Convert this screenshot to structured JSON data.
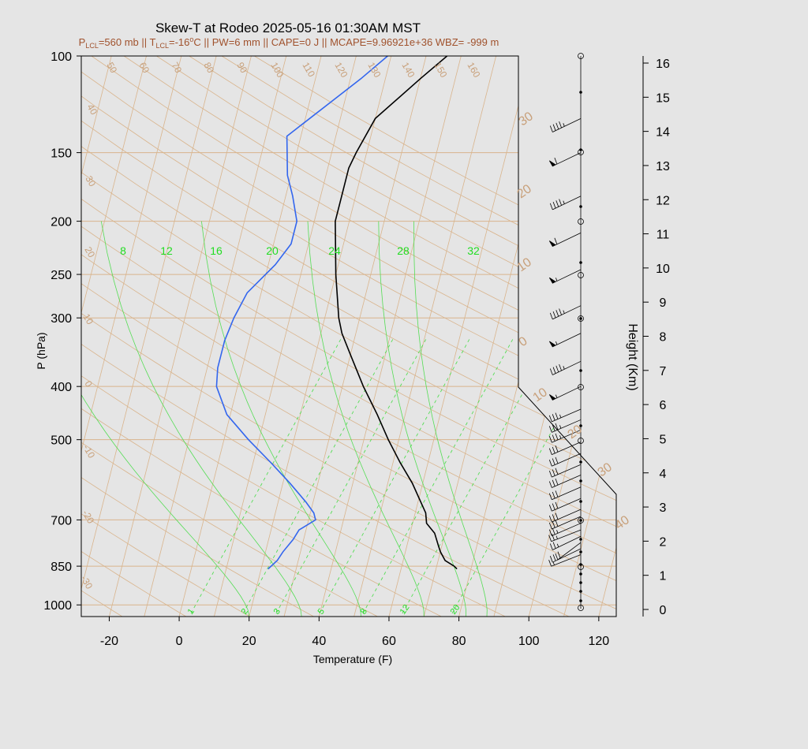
{
  "chart_data": {
    "type": "line",
    "title": "Skew-T at Rodeo 2025-05-16 01:30AM MST",
    "subtitle": {
      "p_label": "P",
      "p_sub": "LCL",
      "p_value": "=560 mb || T",
      "t_sub": "LCL",
      "t_value": "=-16",
      "deg": "o",
      "rest": "C || PW=6 mm || CAPE=0 J || MCAPE=9.96921e+36 WBZ= -999 m"
    },
    "xlabel": "Temperature (F)",
    "ylabel": "P (hPa)",
    "y2label": "Height (Km)",
    "xlim": [
      -28,
      125
    ],
    "plim": [
      1050,
      100
    ],
    "x_ticks": [
      "-20",
      "0",
      "20",
      "40",
      "60",
      "80",
      "100",
      "120"
    ],
    "p_ticks": [
      "100",
      "150",
      "200",
      "250",
      "300",
      "400",
      "500",
      "700",
      "850",
      "1000"
    ],
    "height_ticks": [
      "0",
      "1",
      "2",
      "3",
      "4",
      "5",
      "6",
      "7",
      "8",
      "9",
      "10",
      "11",
      "12",
      "13",
      "14",
      "15",
      "16"
    ],
    "skew_isotherm_labels": [
      "-30",
      "-20",
      "-10",
      "0",
      "10",
      "20",
      "30",
      "40",
      "50",
      "60",
      "70",
      "80",
      "90",
      "100",
      "110",
      "120",
      "130",
      "140",
      "150",
      "160"
    ],
    "adiabat_labels": [
      "0",
      "10",
      "20",
      "30",
      "10",
      "20",
      "30",
      "40"
    ],
    "mixing_ratio_top_labels": [
      "8",
      "12",
      "16",
      "20",
      "24",
      "28",
      "32"
    ],
    "mixing_ratio_bottom_labels": [
      "1",
      "2",
      "3",
      "5",
      "8",
      "12",
      "20"
    ],
    "series": [
      {
        "name": "Temperature",
        "color": "#000000",
        "points": [
          [
            860,
            76
          ],
          [
            850,
            75
          ],
          [
            830,
            72
          ],
          [
            800,
            70
          ],
          [
            780,
            69
          ],
          [
            740,
            67
          ],
          [
            710,
            64
          ],
          [
            680,
            63
          ],
          [
            600,
            57
          ],
          [
            550,
            52
          ],
          [
            500,
            47
          ],
          [
            450,
            42
          ],
          [
            400,
            36
          ],
          [
            350,
            30
          ],
          [
            320,
            26
          ],
          [
            300,
            24
          ],
          [
            250,
            20
          ],
          [
            200,
            16
          ],
          [
            180,
            16
          ],
          [
            160,
            16
          ],
          [
            150,
            17
          ],
          [
            130,
            20
          ],
          [
            110,
            30
          ],
          [
            100,
            36
          ]
        ]
      },
      {
        "name": "Dewpoint",
        "color": "#3366ee",
        "points": [
          [
            860,
            22
          ],
          [
            830,
            24
          ],
          [
            800,
            25
          ],
          [
            760,
            27
          ],
          [
            730,
            28
          ],
          [
            700,
            32
          ],
          [
            680,
            31
          ],
          [
            650,
            28
          ],
          [
            600,
            22
          ],
          [
            550,
            15
          ],
          [
            500,
            7
          ],
          [
            450,
            -1
          ],
          [
            400,
            -6
          ],
          [
            370,
            -7
          ],
          [
            330,
            -7
          ],
          [
            300,
            -6
          ],
          [
            270,
            -4
          ],
          [
            240,
            2
          ],
          [
            220,
            5
          ],
          [
            200,
            5
          ],
          [
            180,
            2
          ],
          [
            165,
            -1
          ],
          [
            140,
            -4
          ],
          [
            110,
            13
          ],
          [
            100,
            19
          ]
        ]
      }
    ],
    "wind_barbs": [
      {
        "p": 810,
        "dir": 260,
        "spd": 15
      },
      {
        "p": 790,
        "dir": 250,
        "spd": 20
      },
      {
        "p": 770,
        "dir": 230,
        "spd": 20
      },
      {
        "p": 750,
        "dir": 250,
        "spd": 25
      },
      {
        "p": 730,
        "dir": 260,
        "spd": 25
      },
      {
        "p": 710,
        "dir": 255,
        "spd": 25
      },
      {
        "p": 690,
        "dir": 255,
        "spd": 30
      },
      {
        "p": 670,
        "dir": 255,
        "spd": 30
      },
      {
        "p": 640,
        "dir": 255,
        "spd": 30
      },
      {
        "p": 610,
        "dir": 255,
        "spd": 30
      },
      {
        "p": 580,
        "dir": 255,
        "spd": 30
      },
      {
        "p": 555,
        "dir": 255,
        "spd": 30
      },
      {
        "p": 530,
        "dir": 255,
        "spd": 30
      },
      {
        "p": 505,
        "dir": 255,
        "spd": 30
      },
      {
        "p": 480,
        "dir": 255,
        "spd": 35
      },
      {
        "p": 460,
        "dir": 255,
        "spd": 35
      },
      {
        "p": 440,
        "dir": 255,
        "spd": 35
      },
      {
        "p": 400,
        "dir": 250,
        "spd": 55
      },
      {
        "p": 360,
        "dir": 250,
        "spd": 45
      },
      {
        "p": 320,
        "dir": 250,
        "spd": 55
      },
      {
        "p": 285,
        "dir": 250,
        "spd": 45
      },
      {
        "p": 245,
        "dir": 250,
        "spd": 55
      },
      {
        "p": 210,
        "dir": 250,
        "spd": 60
      },
      {
        "p": 180,
        "dir": 250,
        "spd": 45
      },
      {
        "p": 150,
        "dir": 250,
        "spd": 60
      },
      {
        "p": 130,
        "dir": 250,
        "spd": 45
      }
    ]
  }
}
